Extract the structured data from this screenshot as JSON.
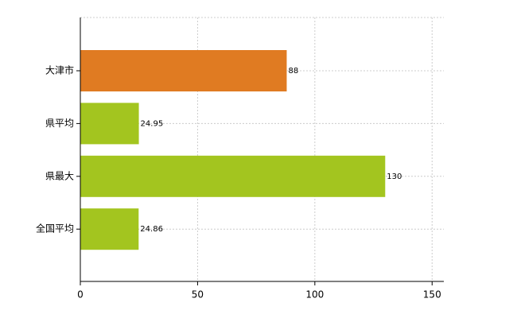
{
  "chart_data": {
    "type": "bar",
    "orientation": "horizontal",
    "categories": [
      "大津市",
      "県平均",
      "県最大",
      "全国平均"
    ],
    "values": [
      88,
      24.95,
      130,
      24.86
    ],
    "colors": [
      "#e07b22",
      "#a3c51f",
      "#a3c51f",
      "#a3c51f"
    ],
    "xlim": [
      0,
      155
    ],
    "xticks": [
      0,
      50,
      100,
      150
    ],
    "grid": true,
    "value_labels_shown": true
  }
}
